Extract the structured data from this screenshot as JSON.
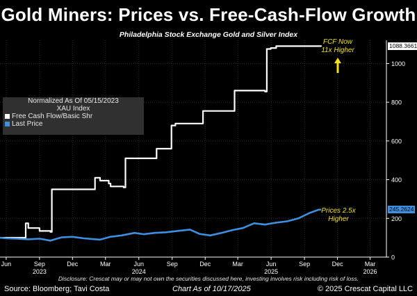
{
  "header": {
    "title": "Gold Miners: Prices vs. Free-Cash-Flow Growth",
    "subtitle": "Philadelphia Stock Exchange Gold and Silver Index"
  },
  "legend": {
    "heading1": "Normalized As Of 05/15/2023",
    "heading2": "XAU Index",
    "items": [
      {
        "label": "Free Cash Flow/Basic Shr",
        "color": "#ffffff"
      },
      {
        "label": "Last Price",
        "color": "#3f8fe0"
      }
    ]
  },
  "annotations": {
    "fcf_line1": "FCF Now",
    "fcf_line2": "11x Higher",
    "price_line1": "Prices 2.5x",
    "price_line2": "Higher"
  },
  "value_boxes": {
    "fcf": "1088.3661",
    "price": "245.2624"
  },
  "footer": {
    "disclosure": "Disclosure: Crescat may or may not own the securities discussed here, investing involves risk including risk of loss.",
    "source": "Source: Bloomberg; Tavi Costa",
    "chart_as_of": "Chart As of 10/17/2025",
    "copyright": "© 2025 Crescat Capital LLC"
  },
  "colors": {
    "background": "#000000",
    "fcf": "#ffffff",
    "price": "#3f8fe0",
    "annotation": "#f3e21a"
  },
  "chart_data": {
    "type": "line",
    "title": "Gold Miners: Prices vs. Free-Cash-Flow Growth",
    "subtitle": "Philadelphia Stock Exchange Gold and Silver Index",
    "xlim": [
      "2023-05-15",
      "2026-04-15"
    ],
    "ylim": [
      0,
      1120
    ],
    "yticks": [
      0,
      200,
      400,
      600,
      800,
      1000
    ],
    "xticks": [
      {
        "date": "2023-06-01",
        "label": "Jun",
        "year": ""
      },
      {
        "date": "2023-09-01",
        "label": "Sep",
        "year": "2023"
      },
      {
        "date": "2023-12-01",
        "label": "Dec",
        "year": ""
      },
      {
        "date": "2024-03-01",
        "label": "Mar",
        "year": ""
      },
      {
        "date": "2024-06-01",
        "label": "Jun",
        "year": "2024"
      },
      {
        "date": "2024-09-01",
        "label": "Sep",
        "year": ""
      },
      {
        "date": "2024-12-01",
        "label": "Dec",
        "year": ""
      },
      {
        "date": "2025-03-01",
        "label": "Mar",
        "year": ""
      },
      {
        "date": "2025-06-01",
        "label": "Jun",
        "year": "2025"
      },
      {
        "date": "2025-09-01",
        "label": "Sep",
        "year": ""
      },
      {
        "date": "2025-12-01",
        "label": "Dec",
        "year": ""
      },
      {
        "date": "2026-03-01",
        "label": "Mar",
        "year": "2026"
      }
    ],
    "grid": true,
    "legend_position": "left",
    "series": [
      {
        "name": "Free Cash Flow/Basic Shr",
        "color": "#ffffff",
        "step": true,
        "points": [
          [
            "2023-05-15",
            100
          ],
          [
            "2023-07-20",
            100
          ],
          [
            "2023-07-25",
            175
          ],
          [
            "2023-08-01",
            150
          ],
          [
            "2023-08-20",
            150
          ],
          [
            "2023-09-01",
            135
          ],
          [
            "2023-10-01",
            130
          ],
          [
            "2023-10-05",
            350
          ],
          [
            "2024-01-25",
            350
          ],
          [
            "2024-02-01",
            410
          ],
          [
            "2024-02-15",
            395
          ],
          [
            "2024-03-10",
            380
          ],
          [
            "2024-03-15",
            365
          ],
          [
            "2024-04-20",
            360
          ],
          [
            "2024-04-25",
            510
          ],
          [
            "2024-07-15",
            510
          ],
          [
            "2024-07-20",
            560
          ],
          [
            "2024-08-25",
            560
          ],
          [
            "2024-08-30",
            680
          ],
          [
            "2024-09-10",
            690
          ],
          [
            "2024-11-20",
            690
          ],
          [
            "2024-11-25",
            755
          ],
          [
            "2025-02-15",
            755
          ],
          [
            "2025-02-20",
            860
          ],
          [
            "2025-05-15",
            855
          ],
          [
            "2025-05-20",
            1075
          ],
          [
            "2025-05-31",
            1080
          ],
          [
            "2025-06-15",
            1090
          ],
          [
            "2025-10-17",
            1088
          ]
        ]
      },
      {
        "name": "Last Price",
        "color": "#3f8fe0",
        "step": false,
        "points": [
          [
            "2023-05-15",
            100
          ],
          [
            "2023-06-01",
            97
          ],
          [
            "2023-07-01",
            95
          ],
          [
            "2023-08-01",
            92
          ],
          [
            "2023-09-01",
            95
          ],
          [
            "2023-10-01",
            85
          ],
          [
            "2023-11-01",
            102
          ],
          [
            "2023-12-01",
            105
          ],
          [
            "2024-01-01",
            97
          ],
          [
            "2024-02-15",
            90
          ],
          [
            "2024-03-15",
            105
          ],
          [
            "2024-04-15",
            112
          ],
          [
            "2024-05-20",
            125
          ],
          [
            "2024-06-15",
            118
          ],
          [
            "2024-07-15",
            125
          ],
          [
            "2024-08-15",
            128
          ],
          [
            "2024-09-15",
            135
          ],
          [
            "2024-10-20",
            142
          ],
          [
            "2024-11-15",
            120
          ],
          [
            "2024-12-15",
            112
          ],
          [
            "2025-01-15",
            125
          ],
          [
            "2025-02-15",
            140
          ],
          [
            "2025-03-15",
            150
          ],
          [
            "2025-04-15",
            175
          ],
          [
            "2025-05-15",
            168
          ],
          [
            "2025-06-15",
            178
          ],
          [
            "2025-07-15",
            185
          ],
          [
            "2025-08-15",
            200
          ],
          [
            "2025-09-15",
            228
          ],
          [
            "2025-10-10",
            245
          ],
          [
            "2025-10-17",
            245
          ]
        ]
      }
    ]
  }
}
